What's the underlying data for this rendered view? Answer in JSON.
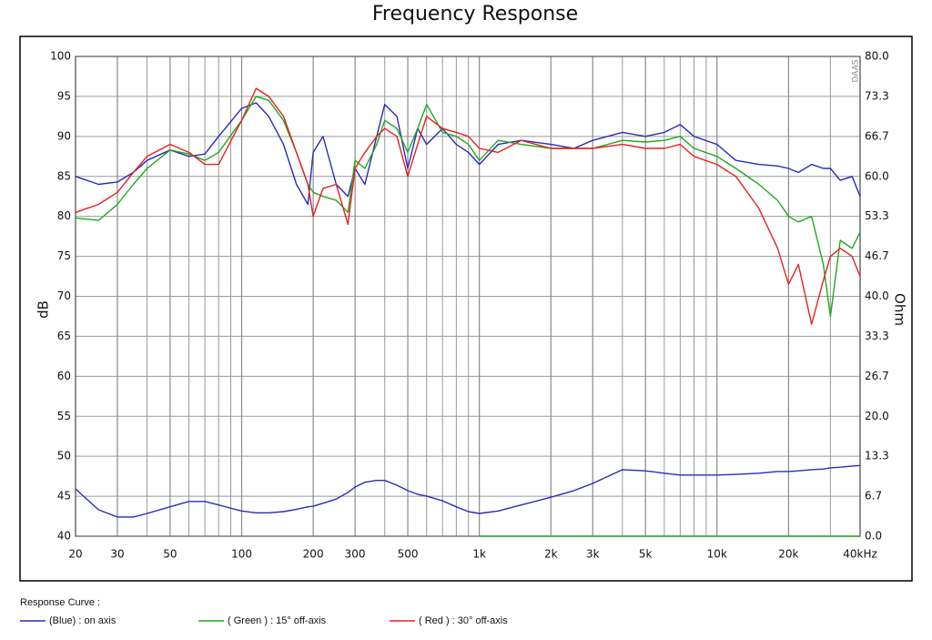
{
  "chart_data": {
    "type": "line",
    "title": "Frequency Response",
    "ylabel": "dB",
    "y2label": "Ohm",
    "annotation": "DAAS",
    "legend_title": "Response Curve :",
    "xscale": "log",
    "grid": true,
    "xlim": [
      20,
      40000
    ],
    "ylim": [
      40,
      100
    ],
    "y2lim": [
      0,
      80
    ],
    "xticks": [
      20,
      30,
      50,
      100,
      200,
      300,
      500,
      {
        "value": 1000,
        "label": "1k"
      },
      {
        "value": 2000,
        "label": "2k"
      },
      {
        "value": 3000,
        "label": "3k"
      },
      {
        "value": 5000,
        "label": "5k"
      },
      {
        "value": 10000,
        "label": "10k"
      },
      {
        "value": 20000,
        "label": "20k"
      },
      {
        "value": 40000,
        "label": "40kHz"
      }
    ],
    "xminor_ticks": [
      40,
      60,
      70,
      80,
      90,
      400,
      600,
      700,
      800,
      900,
      4000,
      6000,
      7000,
      8000,
      9000,
      30000
    ],
    "yticks": [
      40,
      45,
      50,
      55,
      60,
      65,
      70,
      75,
      80,
      85,
      90,
      95,
      100
    ],
    "y2ticks": [
      {
        "value": 0,
        "label": "0.0"
      },
      {
        "value": 6.667,
        "label": "6.7"
      },
      {
        "value": 13.333,
        "label": "13.3"
      },
      {
        "value": 20,
        "label": "20.0"
      },
      {
        "value": 26.667,
        "label": "26.7"
      },
      {
        "value": 33.333,
        "label": "33.3"
      },
      {
        "value": 40,
        "label": "40.0"
      },
      {
        "value": 46.667,
        "label": "46.7"
      },
      {
        "value": 53.333,
        "label": "53.3"
      },
      {
        "value": 60,
        "label": "60.0"
      },
      {
        "value": 66.667,
        "label": "66.7"
      },
      {
        "value": 73.333,
        "label": "73.3"
      },
      {
        "value": 80,
        "label": "80.0"
      }
    ],
    "x": [
      20,
      25,
      30,
      35,
      40,
      50,
      60,
      70,
      80,
      100,
      115,
      130,
      150,
      170,
      190,
      200,
      220,
      250,
      280,
      300,
      330,
      370,
      400,
      450,
      500,
      550,
      600,
      700,
      800,
      900,
      1000,
      1200,
      1500,
      2000,
      2500,
      3000,
      4000,
      5000,
      6000,
      7000,
      8000,
      10000,
      12000,
      15000,
      18000,
      20000,
      22000,
      25000,
      28000,
      30000,
      33000,
      37000,
      40000
    ],
    "series": [
      {
        "name": "(Blue)  : on axis",
        "color": "#2b2bb8",
        "values": [
          85,
          84,
          84.3,
          85.5,
          87,
          88.3,
          87.5,
          87.8,
          90,
          93.5,
          94.2,
          92.5,
          89,
          84,
          81.5,
          88,
          90,
          84,
          82.5,
          86,
          84,
          90,
          94,
          92.5,
          86,
          91,
          89,
          91,
          89,
          88,
          86.5,
          89,
          89.5,
          89,
          88.5,
          89.5,
          90.5,
          90,
          90.5,
          91.5,
          90,
          89,
          87,
          86.5,
          86.3,
          86,
          85.5,
          86.5,
          86,
          86,
          84.5,
          85,
          82.5
        ]
      },
      {
        "name": "( Green ) : 15° off-axis",
        "color": "#1fa81f",
        "values": [
          79.8,
          79.5,
          81.5,
          84,
          86,
          88.3,
          87.8,
          87,
          88,
          92,
          95,
          94.5,
          92,
          88,
          84,
          83,
          82.5,
          82,
          80.5,
          87,
          86,
          89,
          92,
          91,
          88,
          91,
          94,
          90.5,
          90,
          89,
          87,
          89.5,
          89,
          88.5,
          88.5,
          88.5,
          89.5,
          89.3,
          89.5,
          90,
          88.5,
          87.5,
          86,
          84,
          82,
          80,
          79.3,
          80,
          74,
          67.5,
          77,
          76,
          78
        ]
      },
      {
        "name": "( Red ) : 30° off-axis",
        "color": "#e82020",
        "values": [
          80.5,
          81.5,
          83,
          85.5,
          87.5,
          89,
          88,
          86.5,
          86.5,
          92,
          96,
          95,
          92.5,
          88,
          84,
          80,
          83.5,
          84,
          79,
          86,
          88,
          90,
          91,
          90,
          85,
          89,
          92.5,
          91,
          90.5,
          90,
          88.5,
          88,
          89.5,
          88.5,
          88.5,
          88.5,
          89,
          88.5,
          88.5,
          89,
          87.5,
          86.5,
          85,
          81,
          76,
          71.5,
          74,
          66.5,
          72,
          75,
          76,
          75,
          72.5
        ]
      },
      {
        "color": "#2b2bb8",
        "axis": "y2",
        "values": [
          7.9,
          4.4,
          3.2,
          3.2,
          3.8,
          4.9,
          5.8,
          5.8,
          5.2,
          4.2,
          3.9,
          3.9,
          4.1,
          4.5,
          4.9,
          5.0,
          5.5,
          6.2,
          7.3,
          8.2,
          9.0,
          9.3,
          9.3,
          8.5,
          7.6,
          7.0,
          6.7,
          5.9,
          4.9,
          4.1,
          3.8,
          4.2,
          5.2,
          6.5,
          7.6,
          8.8,
          11.1,
          10.9,
          10.5,
          10.2,
          10.2,
          10.2,
          10.3,
          10.5,
          10.8,
          10.8,
          10.9,
          11.1,
          11.2,
          11.4,
          11.5,
          11.7,
          11.8
        ]
      },
      {
        "color": "#1fa81f",
        "axis": "y2",
        "values": [
          null,
          null,
          null,
          null,
          null,
          null,
          null,
          null,
          null,
          null,
          null,
          null,
          null,
          null,
          null,
          null,
          null,
          null,
          null,
          null,
          null,
          null,
          null,
          null,
          null,
          null,
          null,
          null,
          null,
          null,
          0,
          0,
          0,
          0,
          0,
          0,
          0,
          0,
          0,
          0,
          0,
          0,
          0,
          0,
          0,
          0,
          0,
          0,
          0,
          0,
          0,
          0,
          0
        ]
      }
    ]
  }
}
